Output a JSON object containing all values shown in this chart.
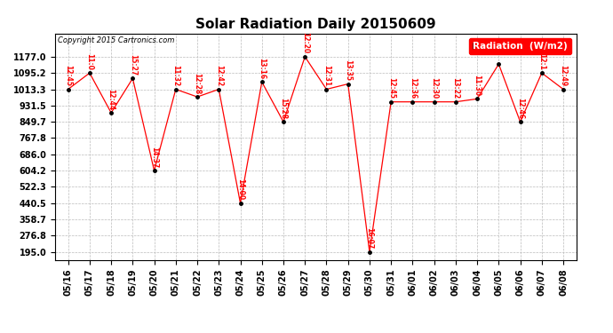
{
  "title": "Solar Radiation Daily 20150609",
  "copyright": "Copyright 2015 Cartronics.com",
  "legend_label": "Radiation  (W/m2)",
  "x_labels": [
    "05/16",
    "05/17",
    "05/18",
    "05/19",
    "05/20",
    "05/21",
    "05/22",
    "05/23",
    "05/24",
    "05/25",
    "05/26",
    "05/27",
    "05/28",
    "05/29",
    "05/30",
    "05/31",
    "06/01",
    "06/02",
    "06/03",
    "06/04",
    "06/05",
    "06/06",
    "06/07",
    "06/08"
  ],
  "y_values": [
    1013.3,
    1095.2,
    895.0,
    1068.0,
    604.2,
    1013.3,
    975.0,
    1013.3,
    440.5,
    1050.0,
    849.7,
    1177.0,
    1013.3,
    1040.0,
    195.0,
    950.0,
    950.0,
    950.0,
    950.0,
    965.0,
    1140.0,
    849.7,
    1095.2,
    1013.3
  ],
  "point_labels": [
    "12:45",
    "11:0",
    "12:44",
    "15:27",
    "14:37",
    "11:32",
    "12:28",
    "12:42",
    "14:00",
    "13:16",
    "15:28",
    "12:20",
    "12:31",
    "13:35",
    "16:07",
    "12:45",
    "12:36",
    "12:30",
    "13:22",
    "11:30",
    "",
    "12:46",
    "12:1",
    "12:49"
  ],
  "ylim_min": 195.0,
  "ylim_max": 1177.0,
  "yticks": [
    195.0,
    276.8,
    358.7,
    440.5,
    522.3,
    604.2,
    686.0,
    767.8,
    849.7,
    931.5,
    1013.3,
    1095.2,
    1177.0
  ],
  "line_color": "red",
  "marker_color": "black",
  "bg_color": "white",
  "grid_color": "#bbbbbb",
  "title_fontsize": 11,
  "tick_fontsize": 7,
  "fig_width": 6.9,
  "fig_height": 3.75,
  "dpi": 100
}
